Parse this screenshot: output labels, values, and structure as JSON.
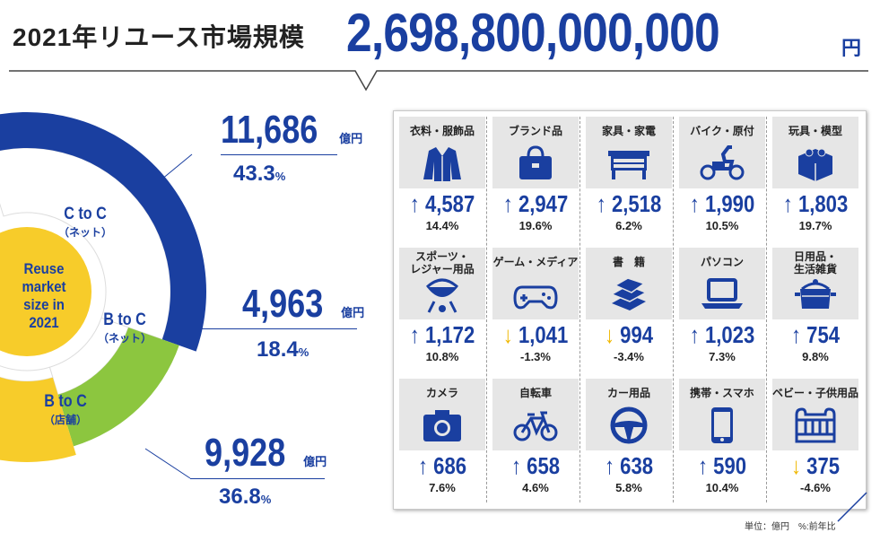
{
  "header": {
    "title": "2021年リユース市場規模",
    "total": "2,698,800,000,000",
    "total_unit": "円"
  },
  "colors": {
    "brand_blue": "#1a3fa0",
    "green": "#8cc63f",
    "yellow": "#f7cc2a",
    "up_arrow": "#1a3fa0",
    "down_arrow": "#f0b800"
  },
  "chart_data": {
    "type": "pie",
    "title": "Reuse market size in 2021",
    "unit": "億円",
    "slices": [
      {
        "name": "C to C",
        "sub": "（ネット）",
        "value": 11686,
        "percent": 43.3,
        "color": "#1a3fa0"
      },
      {
        "name": "B to C",
        "sub": "（ネット）",
        "value": 4963,
        "percent": 18.4,
        "color": "#8cc63f"
      },
      {
        "name": "B to C",
        "sub": "（店舗）",
        "value": 9928,
        "percent": 36.8,
        "color": "#f7cc2a"
      }
    ]
  },
  "center_label": [
    "Reuse",
    "market",
    "size in",
    "2021"
  ],
  "stats": [
    {
      "value": "11,686",
      "unit": "億円",
      "pct": "43.3",
      "pct_unit": "%"
    },
    {
      "value": "4,963",
      "unit": "億円",
      "pct": "18.4",
      "pct_unit": "%"
    },
    {
      "value": "9,928",
      "unit": "億円",
      "pct": "36.8",
      "pct_unit": "%"
    }
  ],
  "categories": [
    {
      "name": "衣料・服飾品",
      "icon": "jacket-icon",
      "dir": "up",
      "value": "4,587",
      "pct": "14.4%"
    },
    {
      "name": "ブランド品",
      "icon": "handbag-icon",
      "dir": "up",
      "value": "2,947",
      "pct": "19.6%"
    },
    {
      "name": "家具・家電",
      "icon": "furniture-icon",
      "dir": "up",
      "value": "2,518",
      "pct": "6.2%"
    },
    {
      "name": "バイク・原付",
      "icon": "scooter-icon",
      "dir": "up",
      "value": "1,990",
      "pct": "10.5%"
    },
    {
      "name": "玩具・模型",
      "icon": "toy-block-icon",
      "dir": "up",
      "value": "1,803",
      "pct": "19.7%"
    },
    {
      "name": "スポーツ・\nレジャー用品",
      "icon": "bbq-grill-icon",
      "dir": "up",
      "value": "1,172",
      "pct": "10.8%"
    },
    {
      "name": "ゲーム・メディア",
      "icon": "gamepad-icon",
      "dir": "down",
      "value": "1,041",
      "pct": "-1.3%"
    },
    {
      "name": "書　籍",
      "icon": "books-icon",
      "dir": "down",
      "value": "994",
      "pct": "-3.4%"
    },
    {
      "name": "パソコン",
      "icon": "laptop-icon",
      "dir": "up",
      "value": "1,023",
      "pct": "7.3%"
    },
    {
      "name": "日用品・\n生活雑貨",
      "icon": "pot-icon",
      "dir": "up",
      "value": "754",
      "pct": "9.8%"
    },
    {
      "name": "カメラ",
      "icon": "camera-icon",
      "dir": "up",
      "value": "686",
      "pct": "7.6%"
    },
    {
      "name": "自転車",
      "icon": "bicycle-icon",
      "dir": "up",
      "value": "658",
      "pct": "4.6%"
    },
    {
      "name": "カー用品",
      "icon": "steering-wheel-icon",
      "dir": "up",
      "value": "638",
      "pct": "5.8%"
    },
    {
      "name": "携帯・スマホ",
      "icon": "smartphone-icon",
      "dir": "up",
      "value": "590",
      "pct": "10.4%"
    },
    {
      "name": "ベビー・子供用品",
      "icon": "crib-icon",
      "dir": "down",
      "value": "375",
      "pct": "-4.6%"
    }
  ],
  "footnote": "単位：億円　%:前年比"
}
